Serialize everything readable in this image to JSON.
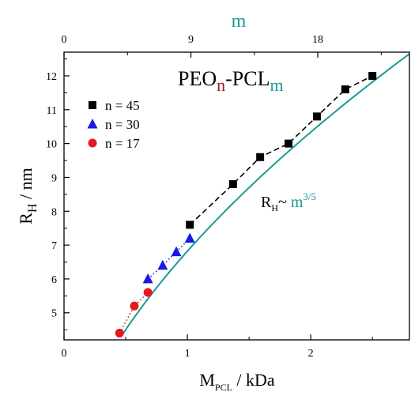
{
  "colors": {
    "teal": "#1a9a96",
    "dark_red": "#9b1c1c",
    "black": "#000000",
    "blue": "#1a1ae6",
    "red": "#e6191e"
  },
  "chart_data": {
    "type": "scatter",
    "title_parts": {
      "p1": "PEO",
      "sub_n": "n",
      "p2": "-PCL",
      "sub_m": "m"
    },
    "xlabel": {
      "main": "M",
      "sub": "PCL",
      "rest": " / kDa"
    },
    "ylabel": {
      "main": "R",
      "sub": "H",
      "rest": " / nm"
    },
    "top_xlabel": "m",
    "xlim": [
      0,
      2.8
    ],
    "ylim": [
      4.2,
      12.7
    ],
    "top_xlim": [
      0,
      24.5
    ],
    "x_ticks": [
      0,
      1,
      2
    ],
    "x_tick_labels": [
      "0",
      "1",
      "2"
    ],
    "y_ticks": [
      5,
      6,
      7,
      8,
      9,
      10,
      11,
      12
    ],
    "y_tick_labels": [
      "5",
      "6",
      "7",
      "8",
      "9",
      "10",
      "11",
      "12"
    ],
    "top_ticks": [
      0,
      9,
      18
    ],
    "top_tick_labels": [
      "0",
      "9",
      "18"
    ],
    "legend_position": "upper-left",
    "series": [
      {
        "name": "n = 45",
        "marker": "square",
        "color": "#000000",
        "line": "dashed",
        "x": [
          1.02,
          1.37,
          1.59,
          1.82,
          2.05,
          2.28,
          2.5
        ],
        "y": [
          7.6,
          8.8,
          9.6,
          10.0,
          10.8,
          11.6,
          12.0
        ]
      },
      {
        "name": "n = 30",
        "marker": "triangle",
        "color": "#1a1ae6",
        "line": "dotted",
        "x": [
          0.68,
          0.8,
          0.91,
          1.02
        ],
        "y": [
          6.0,
          6.4,
          6.8,
          7.2
        ]
      },
      {
        "name": "n = 17",
        "marker": "circle",
        "color": "#e6191e",
        "line": "dotted",
        "x": [
          0.45,
          0.57,
          0.68
        ],
        "y": [
          4.4,
          5.2,
          5.6
        ]
      }
    ],
    "fit_curve": {
      "label_main": "R",
      "label_sub": "H",
      "label_tilde": "~ ",
      "label_m": "m",
      "label_exp": "3/5",
      "exponent": 0.6,
      "x_range": [
        0.47,
        2.8
      ],
      "anchor": {
        "x": 2.8,
        "y": 12.65
      }
    }
  }
}
